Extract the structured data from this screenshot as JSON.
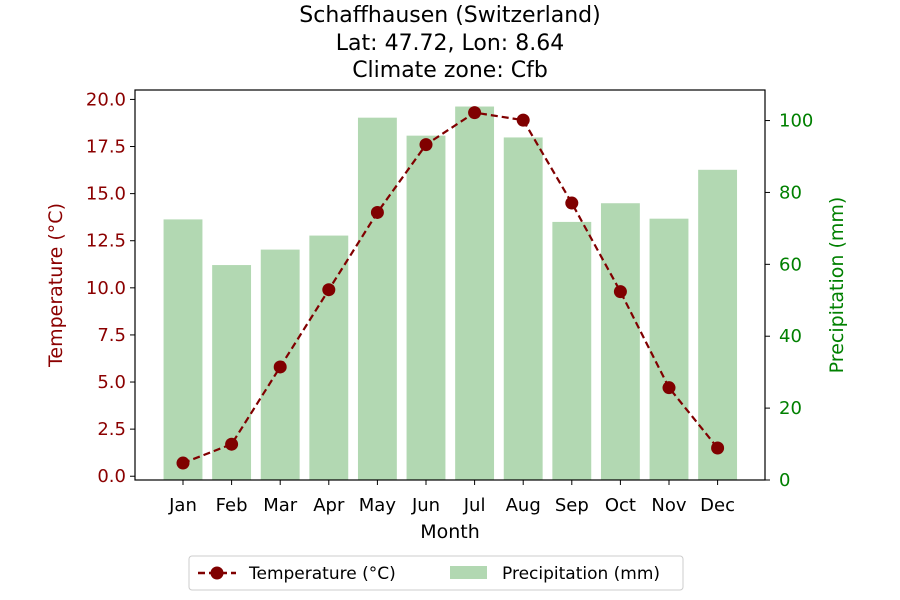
{
  "chart_data": {
    "type": "bar",
    "title_lines": [
      "Schaffhausen (Switzerland)",
      "Lat: 47.72, Lon: 8.64",
      "Climate zone: Cfb"
    ],
    "xlabel": "Month",
    "ylabel_left": "Temperature (°C)",
    "ylabel_right": "Precipitation (mm)",
    "categories": [
      "Jan",
      "Feb",
      "Mar",
      "Apr",
      "May",
      "Jun",
      "Jul",
      "Aug",
      "Sep",
      "Oct",
      "Nov",
      "Dec"
    ],
    "series": [
      {
        "name": "Temperature (°C)",
        "type": "line",
        "axis": "left",
        "color": "#800000",
        "values": [
          0.7,
          1.7,
          5.8,
          9.9,
          14.0,
          17.6,
          19.3,
          18.9,
          14.5,
          9.8,
          4.7,
          1.5
        ]
      },
      {
        "name": "Precipitation (mm)",
        "type": "bar",
        "axis": "right",
        "color": "#b2d8b2",
        "values": [
          72.5,
          59.8,
          64.1,
          68.0,
          100.8,
          95.8,
          103.9,
          95.3,
          71.8,
          77.0,
          72.7,
          86.3
        ]
      }
    ],
    "ylim_left": [
      -0.2,
      20.5
    ],
    "yticks_left": [
      "0.0",
      "2.5",
      "5.0",
      "7.5",
      "10.0",
      "12.5",
      "15.0",
      "17.5",
      "20.0"
    ],
    "ylim_right": [
      0,
      108.5
    ],
    "yticks_right": [
      "0",
      "20",
      "40",
      "60",
      "80",
      "100"
    ],
    "left_axis_color": "#8b0000",
    "right_axis_color": "#008000",
    "grid": false,
    "legend_position": "bottom-center"
  }
}
